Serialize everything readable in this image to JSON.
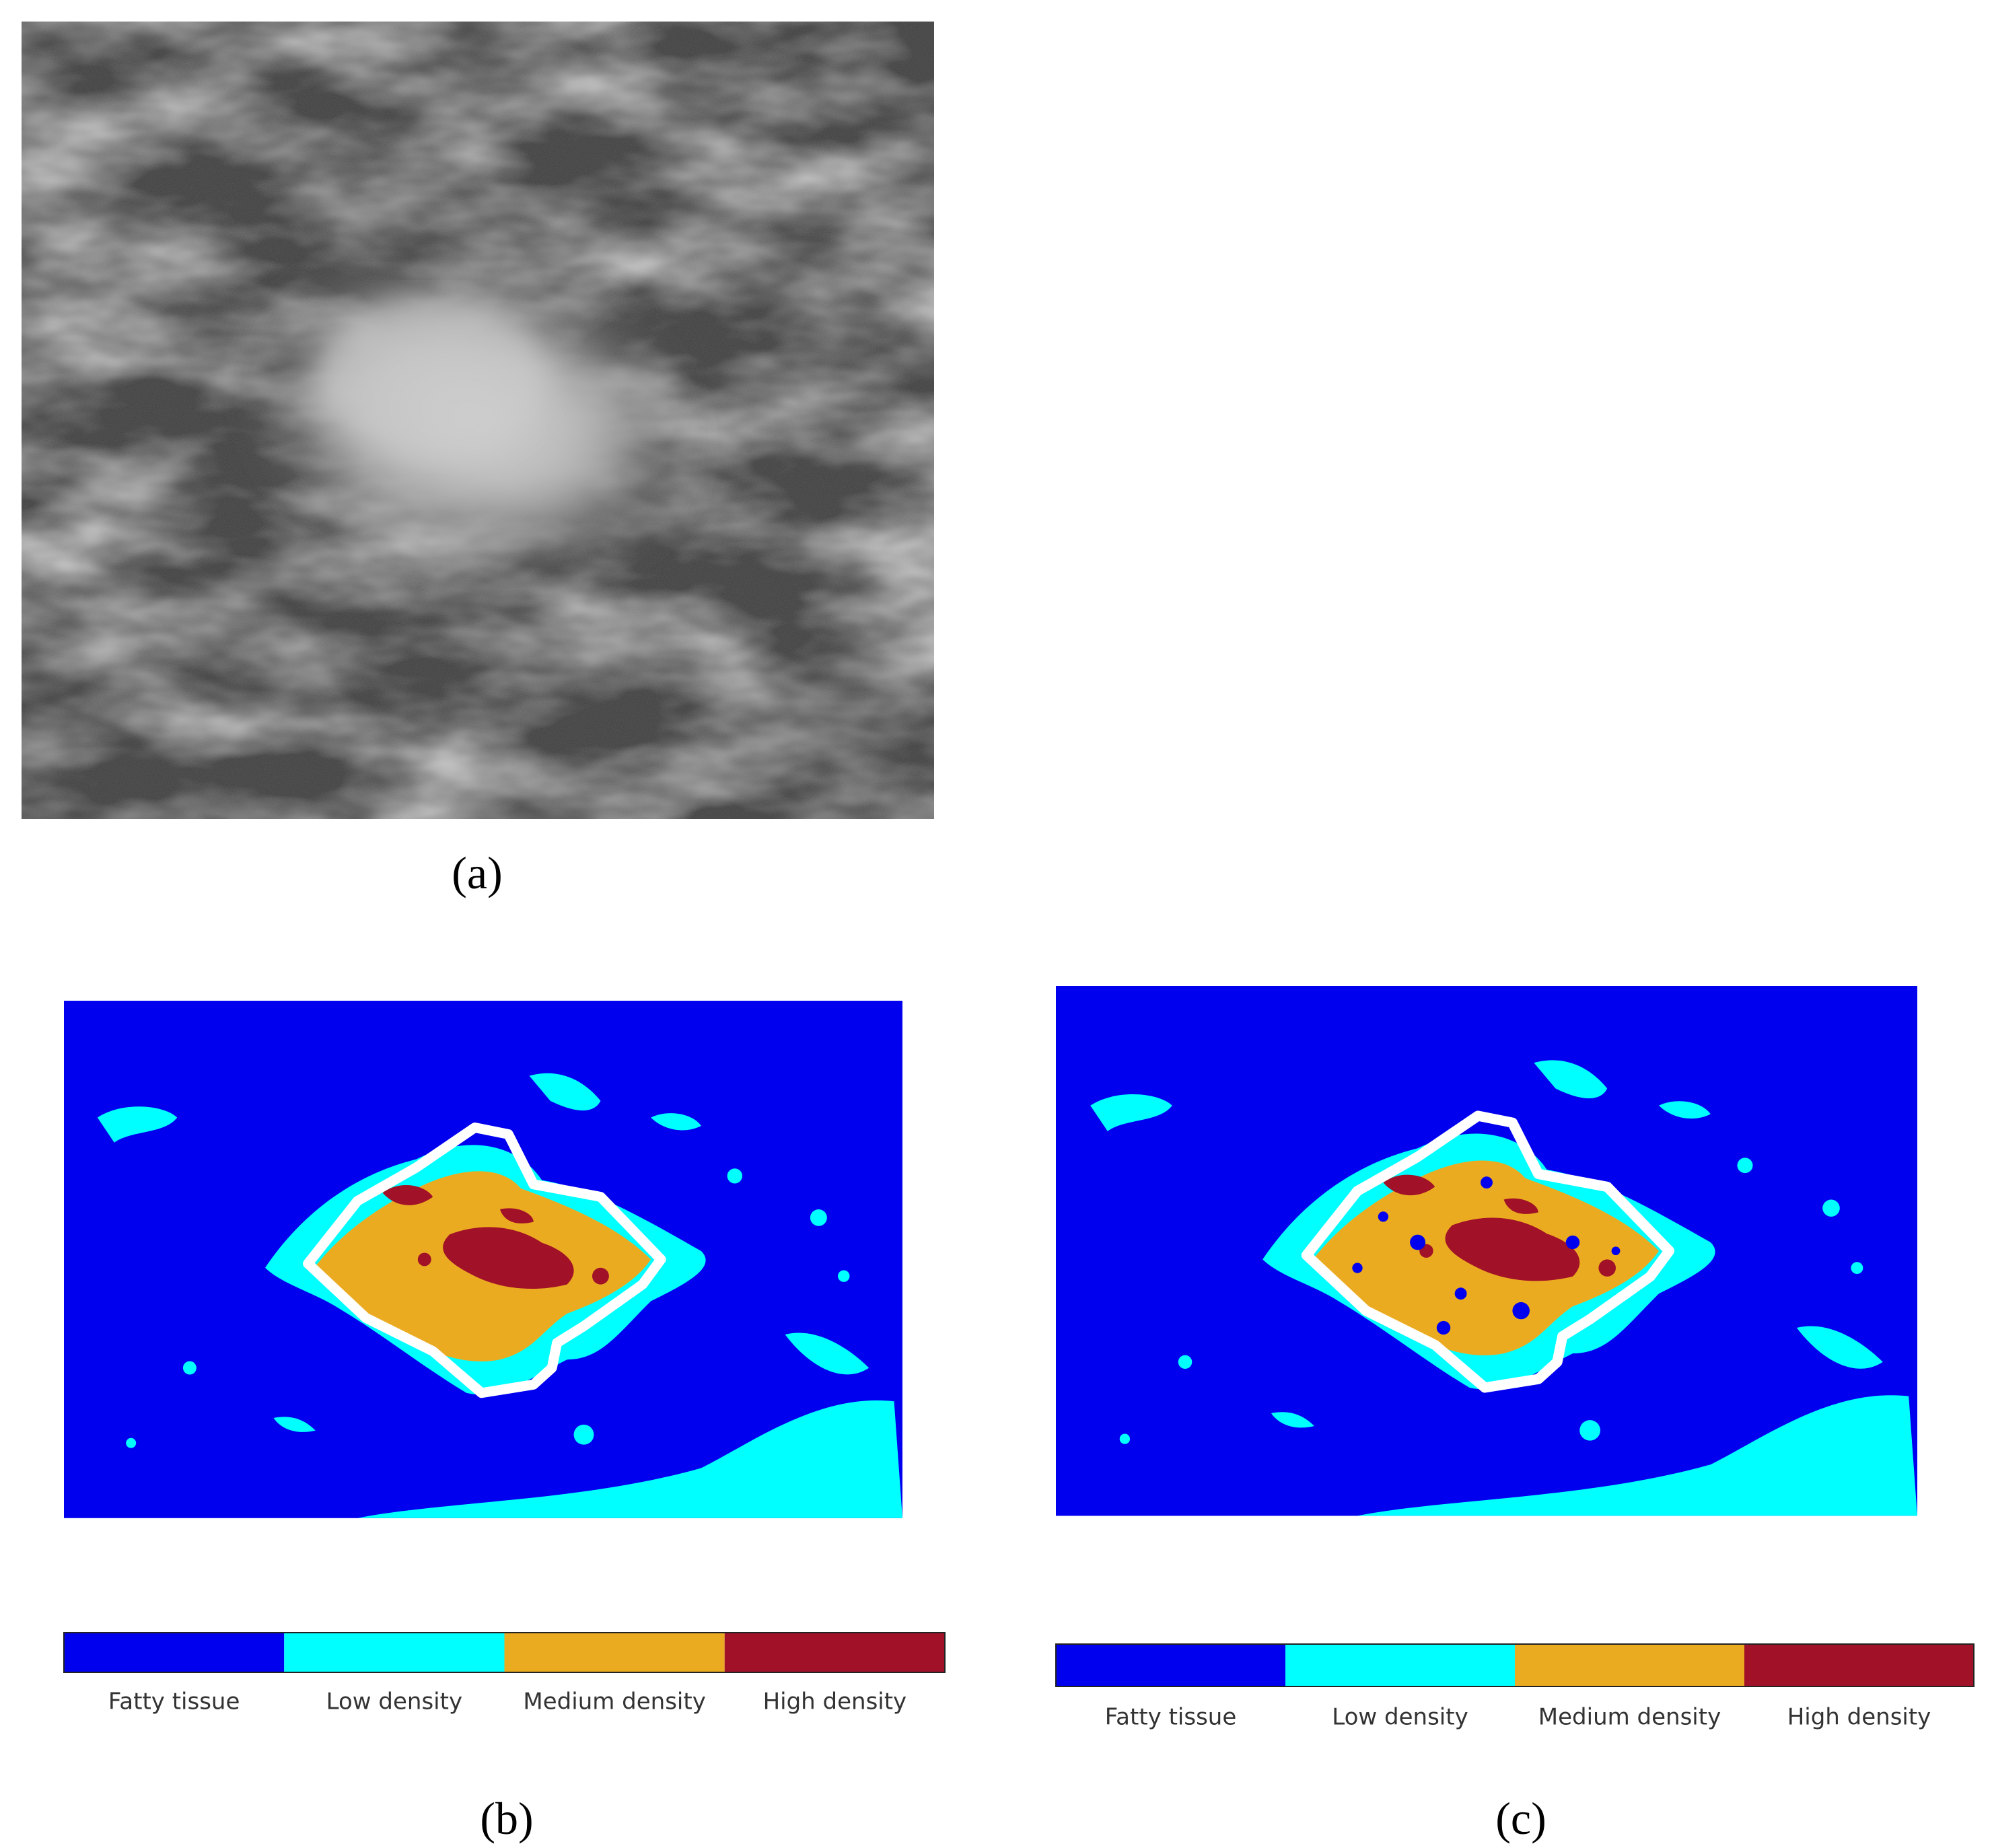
{
  "panels": [
    {
      "label": "(a)"
    },
    {
      "label": "(b)",
      "legend": [
        {
          "name": "Fatty tissue",
          "color": "#0000ef"
        },
        {
          "name": "Low density",
          "color": "#00ffff"
        },
        {
          "name": "Medium density",
          "color": "#ebab21"
        },
        {
          "name": "High density",
          "color": "#a11127"
        }
      ]
    },
    {
      "label": "(c)",
      "legend": [
        {
          "name": "Fatty tissue",
          "color": "#0000ef"
        },
        {
          "name": "Low density",
          "color": "#00ffff"
        },
        {
          "name": "Medium density",
          "color": "#ebab21"
        },
        {
          "name": "High density",
          "color": "#a11127"
        }
      ]
    }
  ]
}
